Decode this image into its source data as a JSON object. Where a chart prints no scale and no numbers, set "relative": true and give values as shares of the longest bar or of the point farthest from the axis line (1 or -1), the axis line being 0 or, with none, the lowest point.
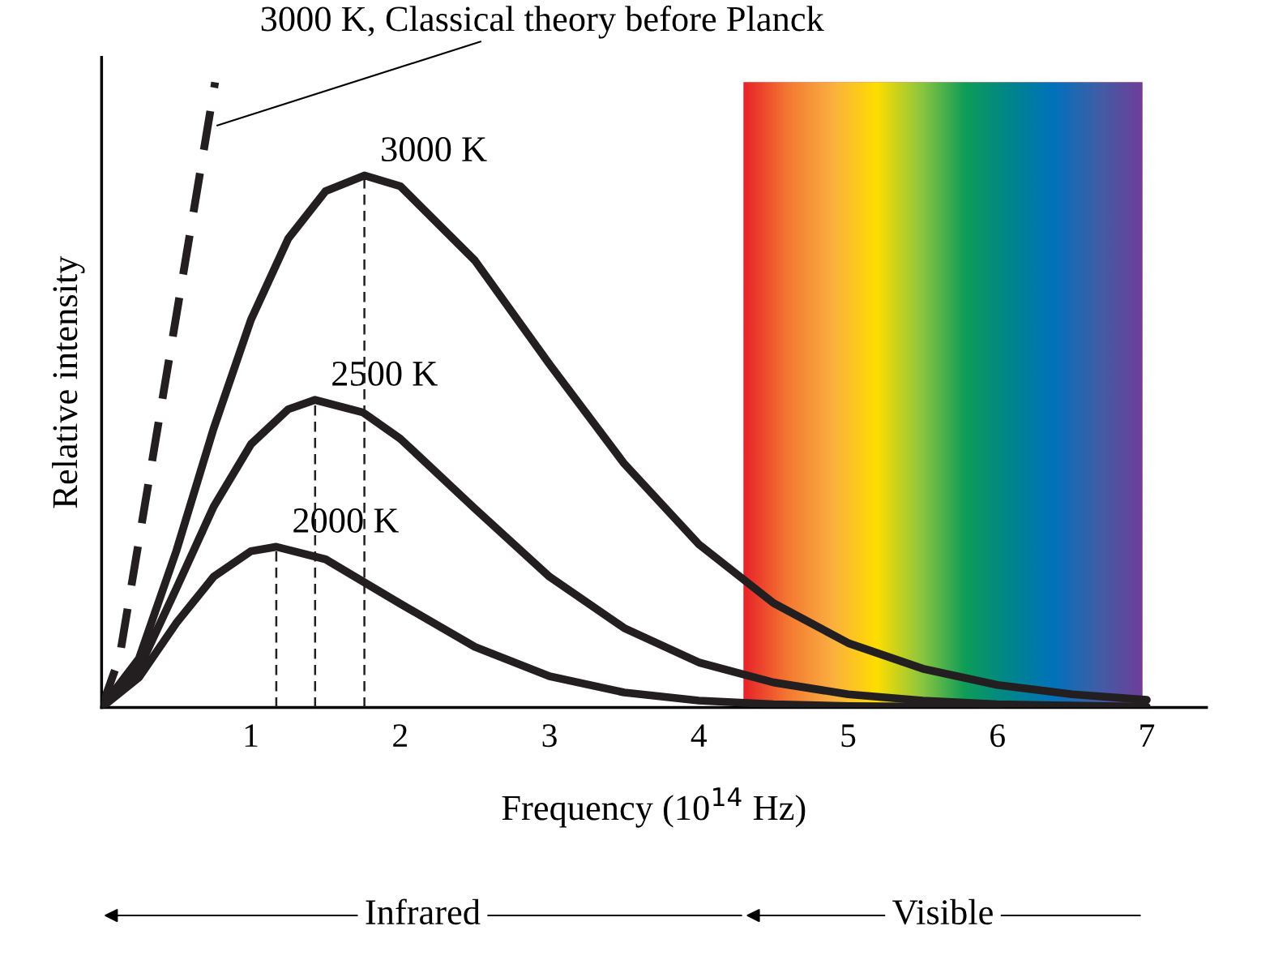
{
  "chart_data": {
    "type": "line",
    "relative": true,
    "xlabel": "Frequency (10$^{14}$ Hz)",
    "ylabel": "Relative intensity",
    "xlim": [
      0,
      7.4
    ],
    "xticks": [
      1,
      2,
      3,
      4,
      5,
      6,
      7
    ],
    "tick_labels": "x",
    "grid": false,
    "legend": false,
    "annotations": [
      "Infrared",
      "Visible"
    ],
    "series": [
      {
        "name": "3000 K, Classical theory before Planck",
        "color": "#231f20",
        "line_style": "dashed",
        "x": [
          0,
          0.12,
          0.76
        ],
        "values": [
          0,
          0.08,
          1.0
        ]
      },
      {
        "name": "3000 K",
        "color": "#231f20",
        "x": [
          0,
          0.25,
          0.5,
          0.75,
          1,
          1.25,
          1.5,
          1.76,
          2,
          2.5,
          3,
          3.5,
          4,
          4.5,
          5,
          5.5,
          6,
          6.5,
          7
        ],
        "values": [
          0,
          0.078,
          0.25,
          0.446,
          0.62,
          0.75,
          0.826,
          0.851,
          0.834,
          0.715,
          0.549,
          0.39,
          0.261,
          0.167,
          0.103,
          0.062,
          0.036,
          0.021,
          0.012
        ]
      },
      {
        "name": "2500 K",
        "color": "#231f20",
        "x": [
          0,
          0.25,
          0.5,
          0.75,
          1,
          1.25,
          1.43,
          1.75,
          2,
          2.5,
          3,
          3.5,
          4,
          4.5,
          5,
          5.5,
          6,
          7
        ],
        "values": [
          0,
          0.062,
          0.19,
          0.321,
          0.421,
          0.477,
          0.492,
          0.472,
          0.43,
          0.318,
          0.209,
          0.127,
          0.072,
          0.04,
          0.021,
          0.011,
          0.005,
          0.001
        ]
      },
      {
        "name": "2000 K",
        "color": "#231f20",
        "x": [
          0,
          0.25,
          0.5,
          0.75,
          1,
          1.17,
          1.5,
          2,
          2.5,
          3,
          3.5,
          4,
          4.5,
          5,
          6
        ],
        "values": [
          0,
          0.048,
          0.135,
          0.209,
          0.25,
          0.257,
          0.237,
          0.166,
          0.097,
          0.05,
          0.024,
          0.011,
          0.005,
          0.002,
          0.0003
        ]
      },
      {
        "color": "#231f20",
        "line_style": "dashed",
        "x": [
          1.17,
          1.17
        ],
        "values": [
          0,
          0.257
        ]
      },
      {
        "color": "#231f20",
        "line_style": "dashed",
        "x": [
          1.43,
          1.43
        ],
        "values": [
          0,
          0.492
        ]
      },
      {
        "color": "#231f20",
        "line_style": "dashed",
        "x": [
          1.76,
          1.76
        ],
        "values": [
          0,
          0.851
        ]
      }
    ],
    "bands": [
      {
        "axis": "x",
        "from": 4.3,
        "to": 6.97,
        "color": [
          "#e8262a",
          "#f47a32",
          "#fbb040",
          "#ffde00",
          "#8dc63f",
          "#0f9d58",
          "#00868b",
          "#0072bc",
          "#3f5fa8",
          "#6d3f99"
        ]
      }
    ]
  }
}
